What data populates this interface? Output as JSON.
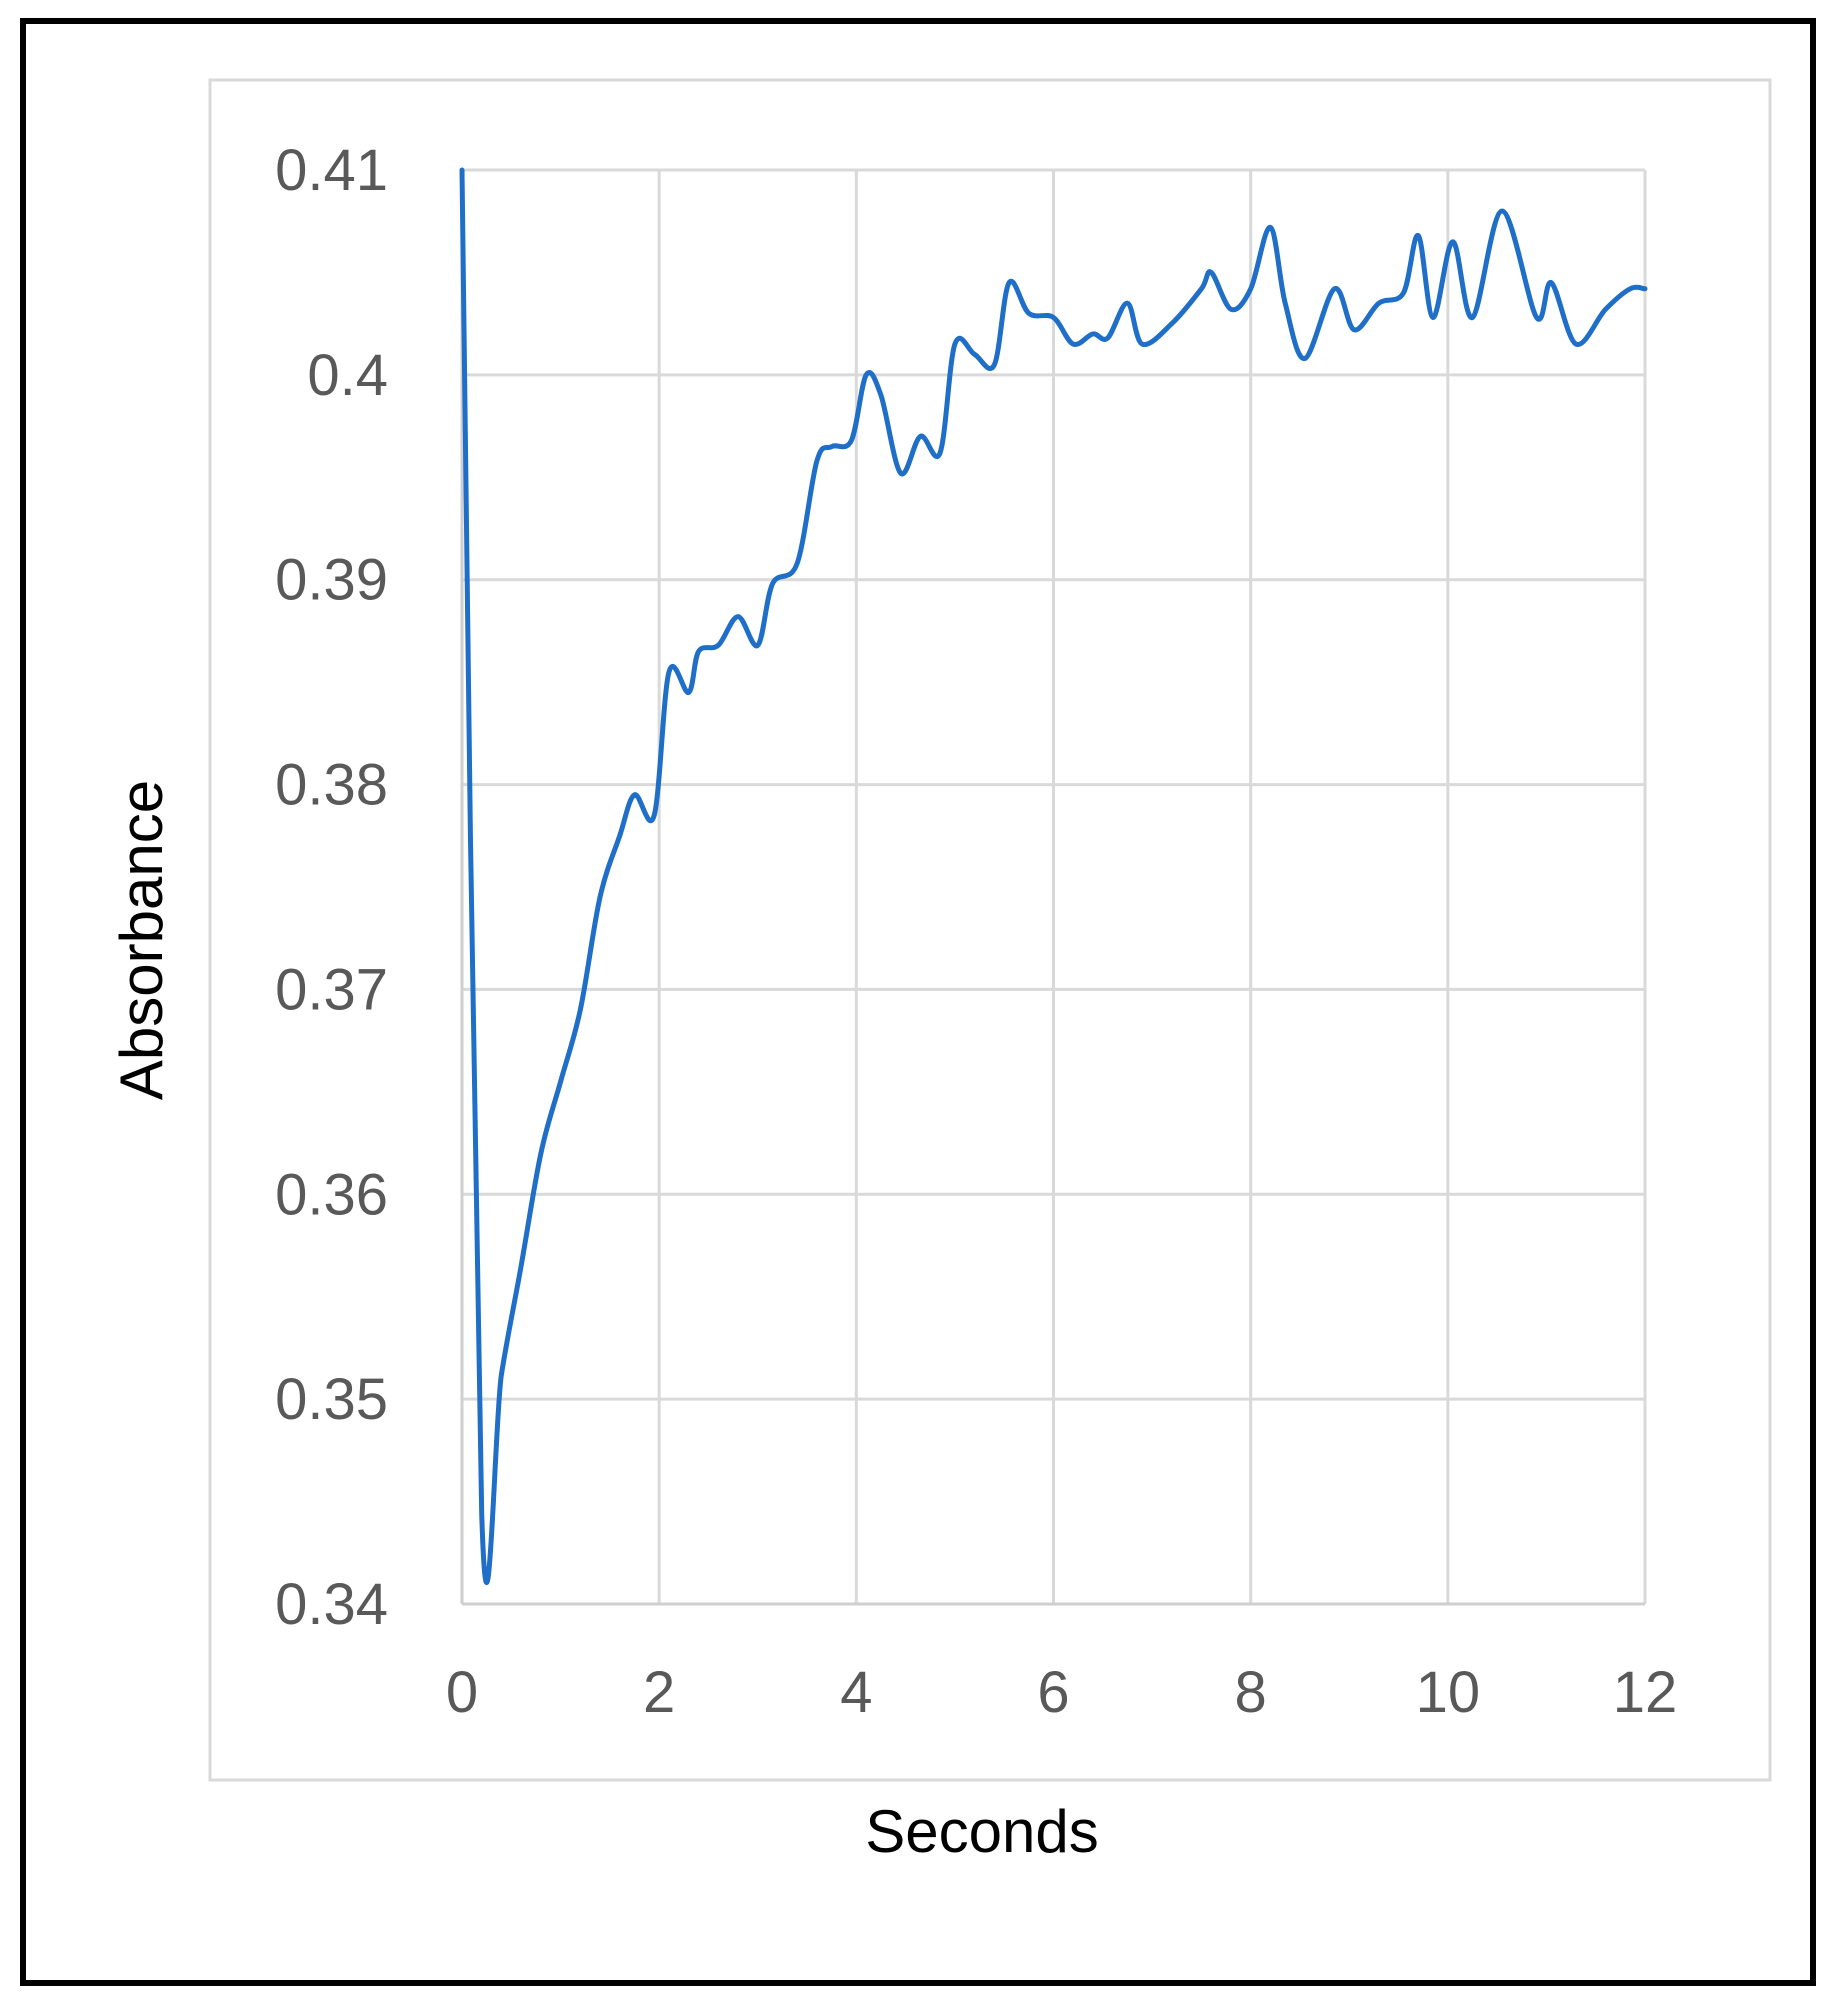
{
  "chart_data": {
    "type": "line",
    "title": "",
    "xlabel": "Seconds",
    "ylabel": "Absorbance",
    "xlim": [
      0,
      12
    ],
    "ylim": [
      0.34,
      0.41
    ],
    "x_ticks": [
      "0",
      "2",
      "4",
      "6",
      "8",
      "10",
      "12"
    ],
    "y_ticks": [
      "0.34",
      "0.35",
      "0.36",
      "0.37",
      "0.38",
      "0.39",
      "0.4",
      "0.41"
    ],
    "grid": true,
    "legend": "none",
    "line_color": "#1f6fc8",
    "series": [
      {
        "x": [
          0,
          0.2,
          0.4,
          0.6,
          0.8,
          1.0,
          1.2,
          1.4,
          1.6,
          1.75,
          1.95,
          2.1,
          2.3,
          2.4,
          2.6,
          2.8,
          3.0,
          3.15,
          3.4,
          3.6,
          3.75,
          3.95,
          4.1,
          4.25,
          4.45,
          4.65,
          4.85,
          5.0,
          5.2,
          5.4,
          5.55,
          5.75,
          6.0,
          6.2,
          6.4,
          6.55,
          6.75,
          6.9,
          7.2,
          7.5,
          7.6,
          7.8,
          8.0,
          8.2,
          8.35,
          8.55,
          8.85,
          9.05,
          9.3,
          9.55,
          9.7,
          9.85,
          10.05,
          10.25,
          10.55,
          10.9,
          11.05,
          11.3,
          11.6,
          11.85,
          12.0
        ],
        "y": [
          0.41,
          0.3444,
          0.3512,
          0.3565,
          0.362,
          0.3655,
          0.369,
          0.3745,
          0.3775,
          0.3795,
          0.3785,
          0.3855,
          0.3845,
          0.3865,
          0.3868,
          0.3882,
          0.3868,
          0.3898,
          0.3908,
          0.3958,
          0.3965,
          0.3968,
          0.4,
          0.399,
          0.3952,
          0.397,
          0.3962,
          0.4015,
          0.401,
          0.4005,
          0.4045,
          0.403,
          0.4028,
          0.4015,
          0.402,
          0.4018,
          0.4035,
          0.4015,
          0.4025,
          0.4042,
          0.405,
          0.4032,
          0.4042,
          0.4072,
          0.4035,
          0.4008,
          0.4042,
          0.4022,
          0.4035,
          0.404,
          0.4068,
          0.4028,
          0.4065,
          0.4028,
          0.408,
          0.4028,
          0.4045,
          0.4015,
          0.4032,
          0.4042,
          0.4042
        ]
      }
    ]
  }
}
